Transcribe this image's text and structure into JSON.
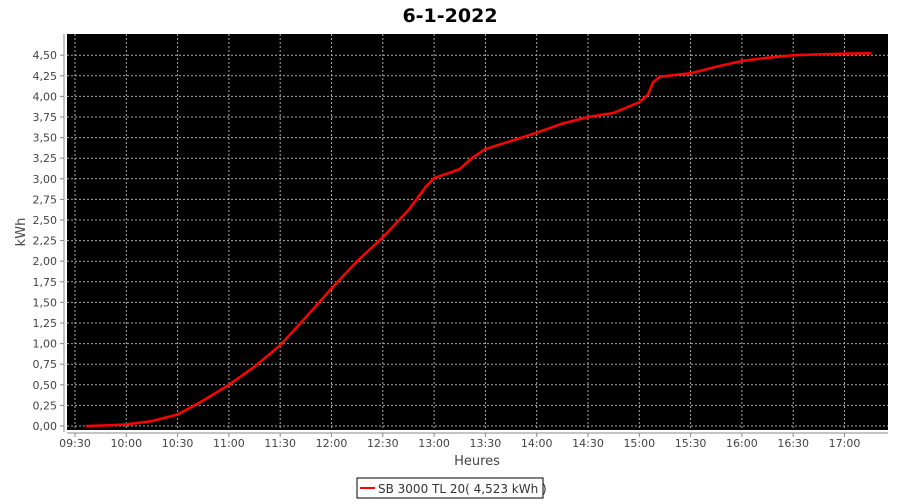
{
  "chart_data": {
    "type": "line",
    "title": "6-1-2022",
    "xlabel": "Heures",
    "ylabel": "kWh",
    "x_ticks": [
      "09:30",
      "10:00",
      "10:30",
      "11:00",
      "11:30",
      "12:00",
      "12:30",
      "13:00",
      "13:30",
      "14:00",
      "14:30",
      "15:00",
      "15:30",
      "16:00",
      "16:30",
      "17:00"
    ],
    "y_ticks": [
      "0,00",
      "0,25",
      "0,50",
      "0,75",
      "1,00",
      "1,25",
      "1,50",
      "1,75",
      "2,00",
      "2,25",
      "2,50",
      "2,75",
      "3,00",
      "3,25",
      "3,50",
      "3,75",
      "4,00",
      "4,25",
      "4,50"
    ],
    "xlim": [
      "09:20",
      "17:30"
    ],
    "ylim": [
      0,
      4.75
    ],
    "grid": true,
    "background": "#000000",
    "legend_position": "bottom",
    "series": [
      {
        "name": "SB 3000 TL 20( 4,523 kWh )",
        "color": "#ff0000",
        "x": [
          "09:37",
          "09:50",
          "10:00",
          "10:15",
          "10:30",
          "10:45",
          "11:00",
          "11:15",
          "11:30",
          "11:45",
          "12:00",
          "12:15",
          "12:30",
          "12:45",
          "12:55",
          "13:00",
          "13:10",
          "13:15",
          "13:22",
          "13:30",
          "13:45",
          "14:00",
          "14:15",
          "14:30",
          "14:45",
          "15:00",
          "15:05",
          "15:08",
          "15:12",
          "15:30",
          "15:45",
          "16:00",
          "16:15",
          "16:30",
          "16:45",
          "17:00",
          "17:15"
        ],
        "y": [
          0.0,
          0.01,
          0.02,
          0.06,
          0.14,
          0.31,
          0.5,
          0.72,
          0.98,
          1.32,
          1.67,
          2.0,
          2.29,
          2.62,
          2.9,
          3.01,
          3.08,
          3.12,
          3.25,
          3.36,
          3.46,
          3.56,
          3.67,
          3.75,
          3.8,
          3.93,
          4.02,
          4.17,
          4.24,
          4.28,
          4.36,
          4.43,
          4.47,
          4.5,
          4.51,
          4.52,
          4.523
        ]
      }
    ]
  }
}
